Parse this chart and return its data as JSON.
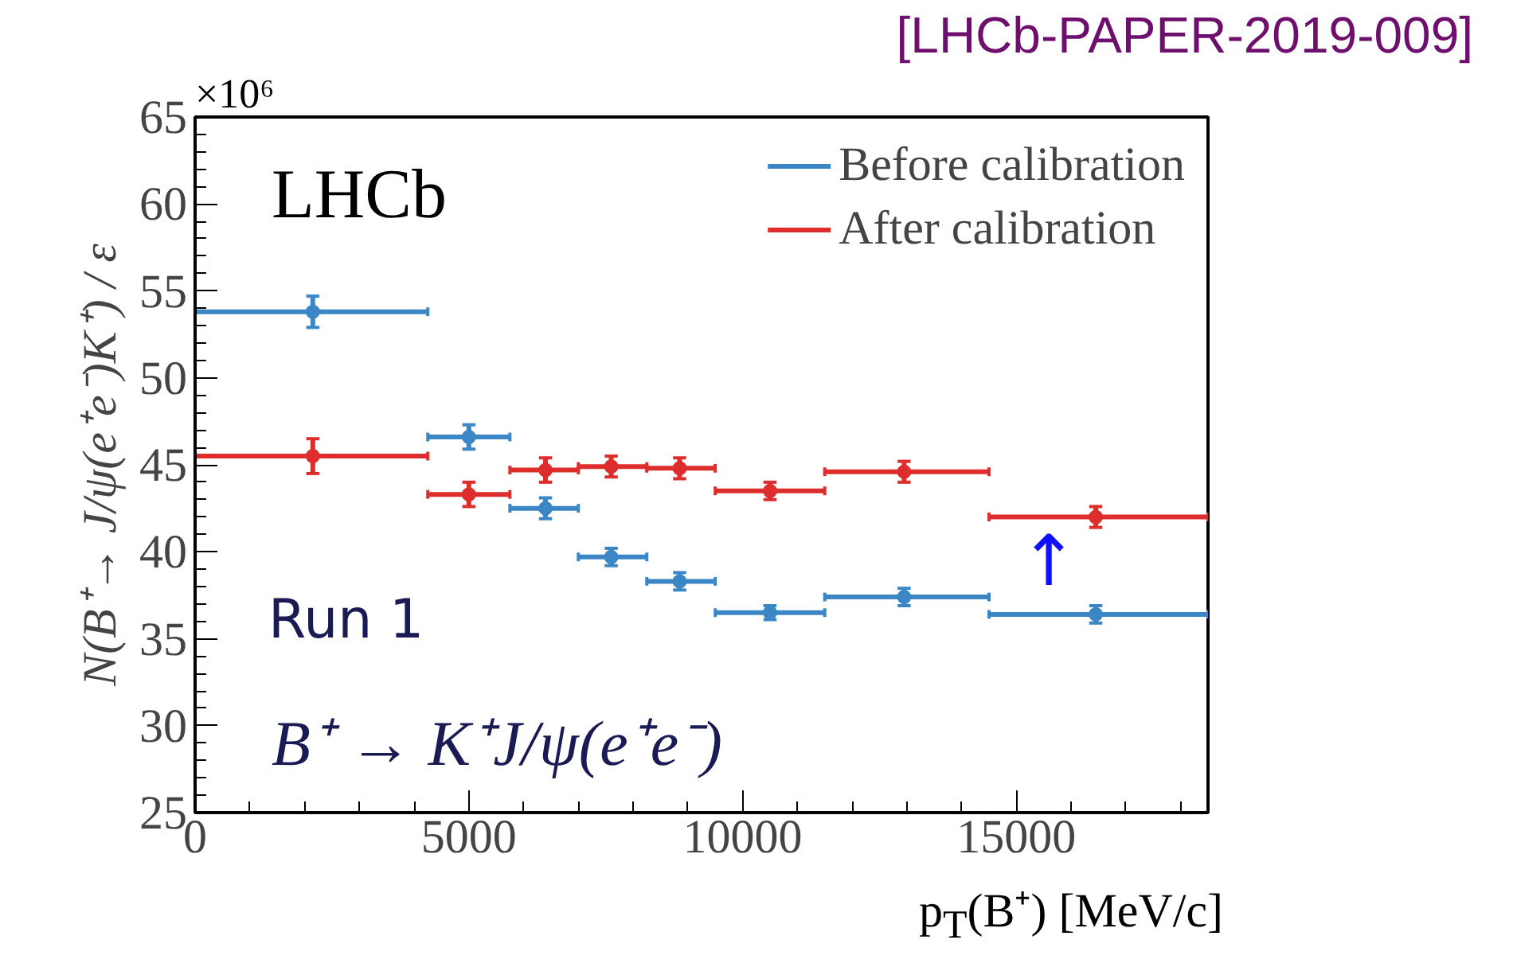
{
  "chart_data": {
    "type": "scatter",
    "xlabel": "p$_{T}$(B⁺) [MeV/c]",
    "ylabel": "N(B⁺→ J/ψ(e⁺e⁻)K⁺) / ε",
    "x": [
      2150,
      5000,
      6400,
      7600,
      8850,
      10500,
      12950,
      16450
    ],
    "xlim": [
      0,
      18500
    ],
    "xticks": [
      0,
      5000,
      10000,
      15000
    ],
    "ylim": [
      25,
      65
    ],
    "yticks": [
      25,
      30,
      35,
      40,
      45,
      50,
      55,
      60,
      65
    ],
    "grid": false,
    "legend": "top right",
    "marker": "circle",
    "series": [
      {
        "name": "Before calibration",
        "color": "#3b87c6",
        "values": [
          53.8,
          46.6,
          42.5,
          39.7,
          38.3,
          36.5,
          37.4,
          36.4
        ],
        "errors": [
          0.9,
          0.7,
          0.6,
          0.5,
          0.5,
          0.4,
          0.5,
          0.5
        ],
        "xerrors": [
          [
            0,
            4250
          ],
          [
            4250,
            5750
          ],
          [
            5750,
            7000
          ],
          [
            7000,
            8250
          ],
          [
            8250,
            9500
          ],
          [
            9500,
            11500
          ],
          [
            11500,
            14500
          ],
          [
            14500,
            18500
          ]
        ]
      },
      {
        "name": "After calibration",
        "color": "#de2d2d",
        "values": [
          45.5,
          43.3,
          44.7,
          44.9,
          44.8,
          43.5,
          44.6,
          42.0
        ],
        "errors": [
          1.0,
          0.7,
          0.7,
          0.6,
          0.6,
          0.5,
          0.6,
          0.6
        ],
        "xerrors": [
          [
            0,
            4250
          ],
          [
            4250,
            5750
          ],
          [
            5750,
            7000
          ],
          [
            7000,
            8250
          ],
          [
            8250,
            9500
          ],
          [
            9500,
            11500
          ],
          [
            11500,
            14500
          ],
          [
            14500,
            18500
          ]
        ]
      }
    ],
    "annotations": [
      "[LHCb-PAPER-2019-009]",
      "×10⁶",
      "LHCb",
      "Run 1",
      "B⁺ → K⁺J/ψ(e⁺e⁻)",
      "↑"
    ]
  }
}
